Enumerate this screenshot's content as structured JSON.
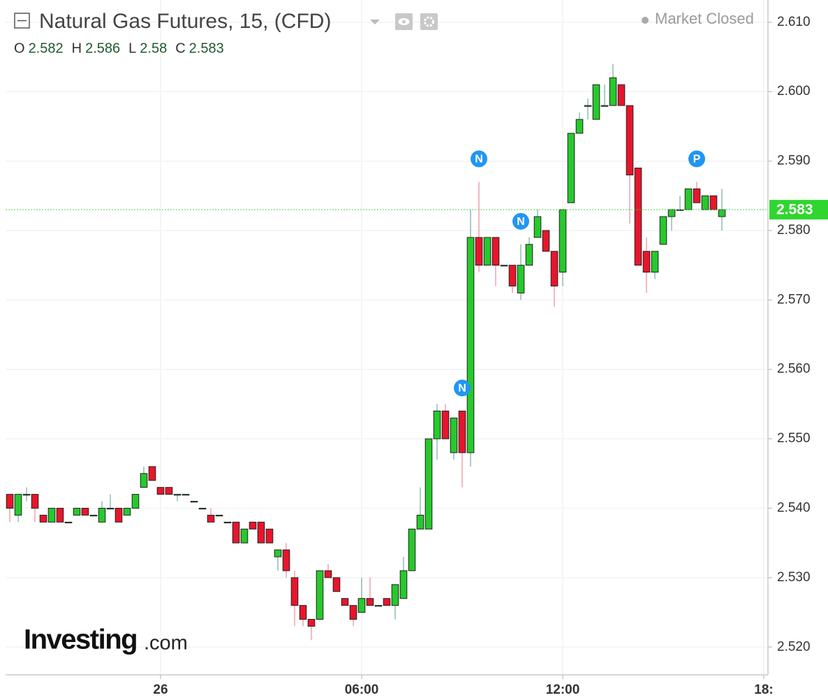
{
  "chart_data": {
    "type": "candlestick",
    "title": "Natural Gas Futures, 15, (CFD)",
    "status": "Market Closed",
    "ohlc": [
      {
        "label": "O",
        "value": 2.582
      },
      {
        "label": "H",
        "value": 2.586
      },
      {
        "label": "L",
        "value": 2.58
      },
      {
        "label": "C",
        "value": 2.583
      }
    ],
    "last_price": 2.583,
    "logo": {
      "brand": "Investing",
      "suffix": ".com"
    },
    "up_color": "#27c92c",
    "down_color": "#e8152b",
    "up_wick_color": "#8fbcb4",
    "down_wick_color": "#f2a0ac",
    "x": [
      -4.5,
      -4.25,
      -4,
      -3.75,
      -3.5,
      -3.25,
      -3,
      -2.75,
      -2.5,
      -2.25,
      -2,
      -1.75,
      -1.5,
      -1.25,
      -1,
      -0.75,
      -0.5,
      -0.25,
      0,
      0.25,
      0.5,
      0.75,
      1,
      1.25,
      1.5,
      1.75,
      2,
      2.25,
      2.5,
      2.75,
      3,
      3.25,
      3.5,
      3.75,
      4,
      4.25,
      4.5,
      4.75,
      5,
      5.25,
      5.5,
      5.75,
      6,
      6.25,
      6.5,
      6.75,
      7,
      7.25,
      7.5,
      7.75,
      8,
      8.25,
      8.5,
      8.75,
      9,
      9.25,
      9.5,
      9.75,
      10,
      10.25,
      10.5,
      10.75,
      11,
      11.25,
      11.5,
      11.75,
      12,
      12.25,
      12.5,
      12.75,
      13,
      13.25,
      13.5,
      13.75,
      14,
      14.25,
      14.5,
      14.75,
      15,
      15.25,
      15.5,
      15.75,
      16,
      16.25,
      16.5,
      16.75
    ],
    "open": [
      2.542,
      2.539,
      2.542,
      2.542,
      2.539,
      2.538,
      2.54,
      2.538,
      2.539,
      2.54,
      2.539,
      2.538,
      2.54,
      2.54,
      2.539,
      2.54,
      2.543,
      2.546,
      2.543,
      2.543,
      2.542,
      2.542,
      2.541,
      2.54,
      2.539,
      2.539,
      2.538,
      2.538,
      2.535,
      2.538,
      2.538,
      2.537,
      2.533,
      2.534,
      2.53,
      2.526,
      2.524,
      2.524,
      2.531,
      2.53,
      2.527,
      2.526,
      2.525,
      2.527,
      2.526,
      2.527,
      2.526,
      2.527,
      2.531,
      2.537,
      2.537,
      2.55,
      2.554,
      2.548,
      2.554,
      2.548,
      2.579,
      2.575,
      2.579,
      2.575,
      2.575,
      2.571,
      2.575,
      2.579,
      2.58,
      2.577,
      2.574,
      2.584,
      2.594,
      2.598,
      2.596,
      2.598,
      2.598,
      2.601,
      2.598,
      2.589,
      2.577,
      2.574,
      2.578,
      2.582,
      2.583,
      2.583,
      2.586,
      2.583,
      2.585,
      2.582
    ],
    "high": [
      2.542,
      2.542,
      2.543,
      2.542,
      2.539,
      2.54,
      2.54,
      2.538,
      2.54,
      2.54,
      2.539,
      2.541,
      2.542,
      2.54,
      2.54,
      2.542,
      2.546,
      2.546,
      2.543,
      2.543,
      2.542,
      2.542,
      2.541,
      2.54,
      2.54,
      2.539,
      2.538,
      2.538,
      2.537,
      2.538,
      2.538,
      2.537,
      2.534,
      2.535,
      2.531,
      2.526,
      2.524,
      2.531,
      2.532,
      2.53,
      2.527,
      2.526,
      2.53,
      2.53,
      2.526,
      2.527,
      2.529,
      2.533,
      2.537,
      2.543,
      2.55,
      2.555,
      2.555,
      2.553,
      2.554,
      2.583,
      2.587,
      2.579,
      2.579,
      2.575,
      2.575,
      2.578,
      2.579,
      2.583,
      2.58,
      2.577,
      2.583,
      2.594,
      2.597,
      2.599,
      2.601,
      2.601,
      2.604,
      2.601,
      2.598,
      2.589,
      2.579,
      2.577,
      2.582,
      2.583,
      2.585,
      2.586,
      2.587,
      2.585,
      2.585,
      2.586
    ],
    "low": [
      2.538,
      2.538,
      2.541,
      2.538,
      2.538,
      2.538,
      2.538,
      2.538,
      2.539,
      2.539,
      2.539,
      2.538,
      2.54,
      2.538,
      2.539,
      2.54,
      2.543,
      2.544,
      2.542,
      2.542,
      2.541,
      2.542,
      2.541,
      2.54,
      2.538,
      2.539,
      2.538,
      2.535,
      2.535,
      2.537,
      2.535,
      2.535,
      2.531,
      2.53,
      2.523,
      2.523,
      2.521,
      2.524,
      2.53,
      2.528,
      2.526,
      2.523,
      2.525,
      2.526,
      2.526,
      2.526,
      2.524,
      2.527,
      2.531,
      2.537,
      2.537,
      2.547,
      2.55,
      2.547,
      2.543,
      2.546,
      2.574,
      2.575,
      2.572,
      2.575,
      2.571,
      2.57,
      2.575,
      2.579,
      2.577,
      2.569,
      2.572,
      2.584,
      2.594,
      2.596,
      2.596,
      2.598,
      2.598,
      2.598,
      2.581,
      2.575,
      2.571,
      2.573,
      2.578,
      2.58,
      2.583,
      2.583,
      2.584,
      2.583,
      2.583,
      2.58
    ],
    "close": [
      2.54,
      2.542,
      2.542,
      2.54,
      2.538,
      2.54,
      2.538,
      2.538,
      2.54,
      2.539,
      2.539,
      2.54,
      2.54,
      2.538,
      2.54,
      2.542,
      2.545,
      2.544,
      2.542,
      2.542,
      2.542,
      2.542,
      2.541,
      2.54,
      2.538,
      2.539,
      2.538,
      2.535,
      2.537,
      2.537,
      2.535,
      2.535,
      2.534,
      2.531,
      2.526,
      2.524,
      2.523,
      2.531,
      2.53,
      2.528,
      2.526,
      2.524,
      2.527,
      2.526,
      2.526,
      2.526,
      2.529,
      2.531,
      2.537,
      2.539,
      2.55,
      2.554,
      2.55,
      2.553,
      2.548,
      2.579,
      2.575,
      2.579,
      2.575,
      2.575,
      2.572,
      2.575,
      2.578,
      2.582,
      2.577,
      2.572,
      2.583,
      2.594,
      2.596,
      2.598,
      2.601,
      2.598,
      2.602,
      2.598,
      2.588,
      2.575,
      2.574,
      2.577,
      2.582,
      2.583,
      2.583,
      2.586,
      2.584,
      2.585,
      2.583,
      2.583
    ],
    "events": [
      {
        "label": "N",
        "x": 9
      },
      {
        "label": "N",
        "x": 9.5
      },
      {
        "label": "N",
        "x": 10.75
      },
      {
        "label": "P",
        "x": 16
      }
    ],
    "xlim": [
      -4.625,
      18.125
    ],
    "xticks": [
      {
        "value": 0,
        "label": "26"
      },
      {
        "value": 6,
        "label": "06:00"
      },
      {
        "value": 12,
        "label": "12:00"
      },
      {
        "value": 18,
        "label": "18:"
      }
    ],
    "ylim": [
      2.516,
      2.6132
    ],
    "yticks": [
      {
        "value": 2.52,
        "label": "2.520"
      },
      {
        "value": 2.53,
        "label": "2.530"
      },
      {
        "value": 2.54,
        "label": "2.540"
      },
      {
        "value": 2.55,
        "label": "2.550"
      },
      {
        "value": 2.56,
        "label": "2.560"
      },
      {
        "value": 2.57,
        "label": "2.570"
      },
      {
        "value": 2.58,
        "label": "2.580"
      },
      {
        "value": 2.59,
        "label": "2.590"
      },
      {
        "value": 2.6,
        "label": "2.600"
      },
      {
        "value": 2.61,
        "label": "2.610"
      }
    ],
    "grid": true
  }
}
